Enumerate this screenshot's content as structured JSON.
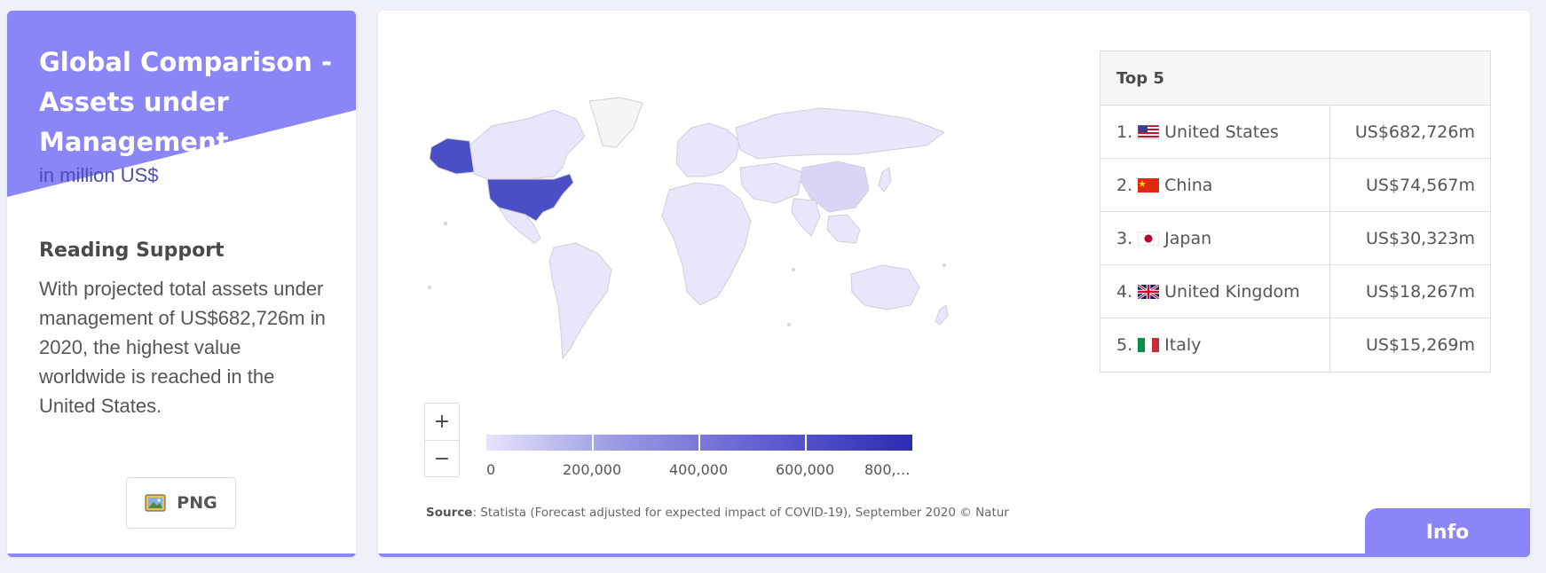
{
  "left_panel": {
    "title": "Global Comparison - Assets under Management",
    "subtitle": "in million US$",
    "reading_support_title": "Reading Support",
    "reading_support_text": "With projected total assets under management of US$682,726m in 2020, the highest value worldwide is reached in the United States.",
    "png_button_label": "PNG",
    "accent_color": "#8a86f7"
  },
  "map": {
    "zoom_in_label": "+",
    "zoom_out_label": "−",
    "legend": {
      "ticks": [
        "0",
        "200,000",
        "400,000",
        "600,000",
        "800,…"
      ],
      "color_low": "#e7e4fb",
      "color_high": "#2c2bb3"
    },
    "highlight_color": "#4a4fc5",
    "base_color": "#e8e6fa"
  },
  "source": {
    "label": "Source",
    "text": ": Statista (Forecast adjusted for expected impact of COVID-19), September 2020 © Natur"
  },
  "top5": {
    "header": "Top 5",
    "rows": [
      {
        "rank": "1.",
        "country": "United States",
        "value": "US$682,726m",
        "flag": "us-flag-icon"
      },
      {
        "rank": "2.",
        "country": "China",
        "value": "US$74,567m",
        "flag": "cn-flag-icon"
      },
      {
        "rank": "3.",
        "country": "Japan",
        "value": "US$30,323m",
        "flag": "jp-flag-icon"
      },
      {
        "rank": "4.",
        "country": "United Kingdom",
        "value": "US$18,267m",
        "flag": "uk-flag-icon"
      },
      {
        "rank": "5.",
        "country": "Italy",
        "value": "US$15,269m",
        "flag": "it-flag-icon"
      }
    ]
  },
  "info_tab_label": "Info"
}
